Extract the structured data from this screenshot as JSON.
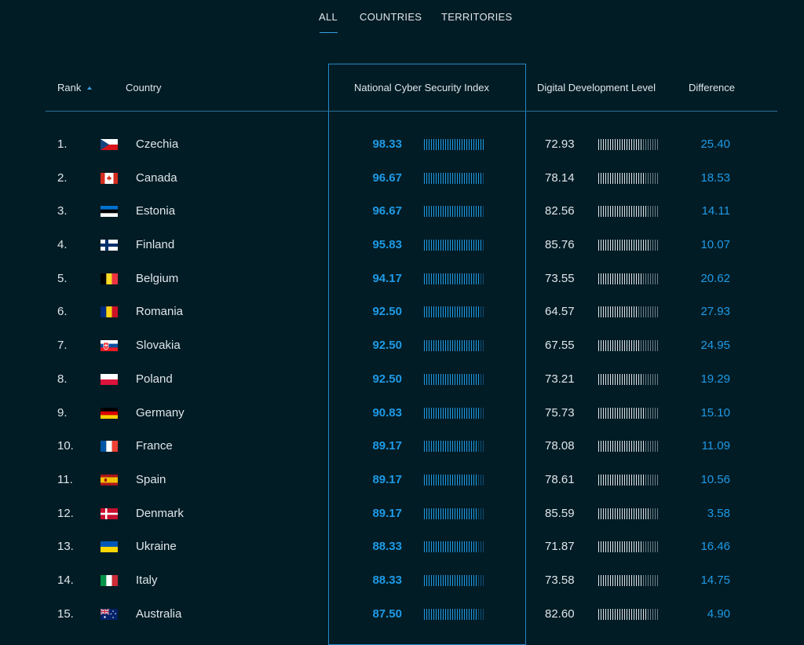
{
  "tabs": {
    "all": "ALL",
    "countries": "COUNTRIES",
    "territories": "TERRITORIES"
  },
  "headers": {
    "rank": "Rank",
    "country": "Country",
    "ncsi": "National Cyber Security Index",
    "ddl": "Digital Development Level",
    "difference": "Difference"
  },
  "colors": {
    "accent": "#1f9ae6",
    "bar_ncsi_on": "#1f9ae6",
    "bar_ncsi_off": "#0d4e78",
    "bar_ddl_on": "#dfe6ea",
    "bar_ddl_off": "#6c7f88"
  },
  "rows": [
    {
      "rank": "1.",
      "country": "Czechia",
      "flag": "cz",
      "ncsi": "98.33",
      "ddl": "72.93",
      "difference": "25.40"
    },
    {
      "rank": "2.",
      "country": "Canada",
      "flag": "ca",
      "ncsi": "96.67",
      "ddl": "78.14",
      "difference": "18.53"
    },
    {
      "rank": "3.",
      "country": "Estonia",
      "flag": "ee",
      "ncsi": "96.67",
      "ddl": "82.56",
      "difference": "14.11"
    },
    {
      "rank": "4.",
      "country": "Finland",
      "flag": "fi",
      "ncsi": "95.83",
      "ddl": "85.76",
      "difference": "10.07"
    },
    {
      "rank": "5.",
      "country": "Belgium",
      "flag": "be",
      "ncsi": "94.17",
      "ddl": "73.55",
      "difference": "20.62"
    },
    {
      "rank": "6.",
      "country": "Romania",
      "flag": "ro",
      "ncsi": "92.50",
      "ddl": "64.57",
      "difference": "27.93"
    },
    {
      "rank": "7.",
      "country": "Slovakia",
      "flag": "sk",
      "ncsi": "92.50",
      "ddl": "67.55",
      "difference": "24.95"
    },
    {
      "rank": "8.",
      "country": "Poland",
      "flag": "pl",
      "ncsi": "92.50",
      "ddl": "73.21",
      "difference": "19.29"
    },
    {
      "rank": "9.",
      "country": "Germany",
      "flag": "de",
      "ncsi": "90.83",
      "ddl": "75.73",
      "difference": "15.10"
    },
    {
      "rank": "10.",
      "country": "France",
      "flag": "fr",
      "ncsi": "89.17",
      "ddl": "78.08",
      "difference": "11.09"
    },
    {
      "rank": "11.",
      "country": "Spain",
      "flag": "es",
      "ncsi": "89.17",
      "ddl": "78.61",
      "difference": "10.56"
    },
    {
      "rank": "12.",
      "country": "Denmark",
      "flag": "dk",
      "ncsi": "89.17",
      "ddl": "85.59",
      "difference": "3.58"
    },
    {
      "rank": "13.",
      "country": "Ukraine",
      "flag": "ua",
      "ncsi": "88.33",
      "ddl": "71.87",
      "difference": "16.46"
    },
    {
      "rank": "14.",
      "country": "Italy",
      "flag": "it",
      "ncsi": "88.33",
      "ddl": "73.58",
      "difference": "14.75"
    },
    {
      "rank": "15.",
      "country": "Australia",
      "flag": "au",
      "ncsi": "87.50",
      "ddl": "82.60",
      "difference": "4.90"
    }
  ]
}
